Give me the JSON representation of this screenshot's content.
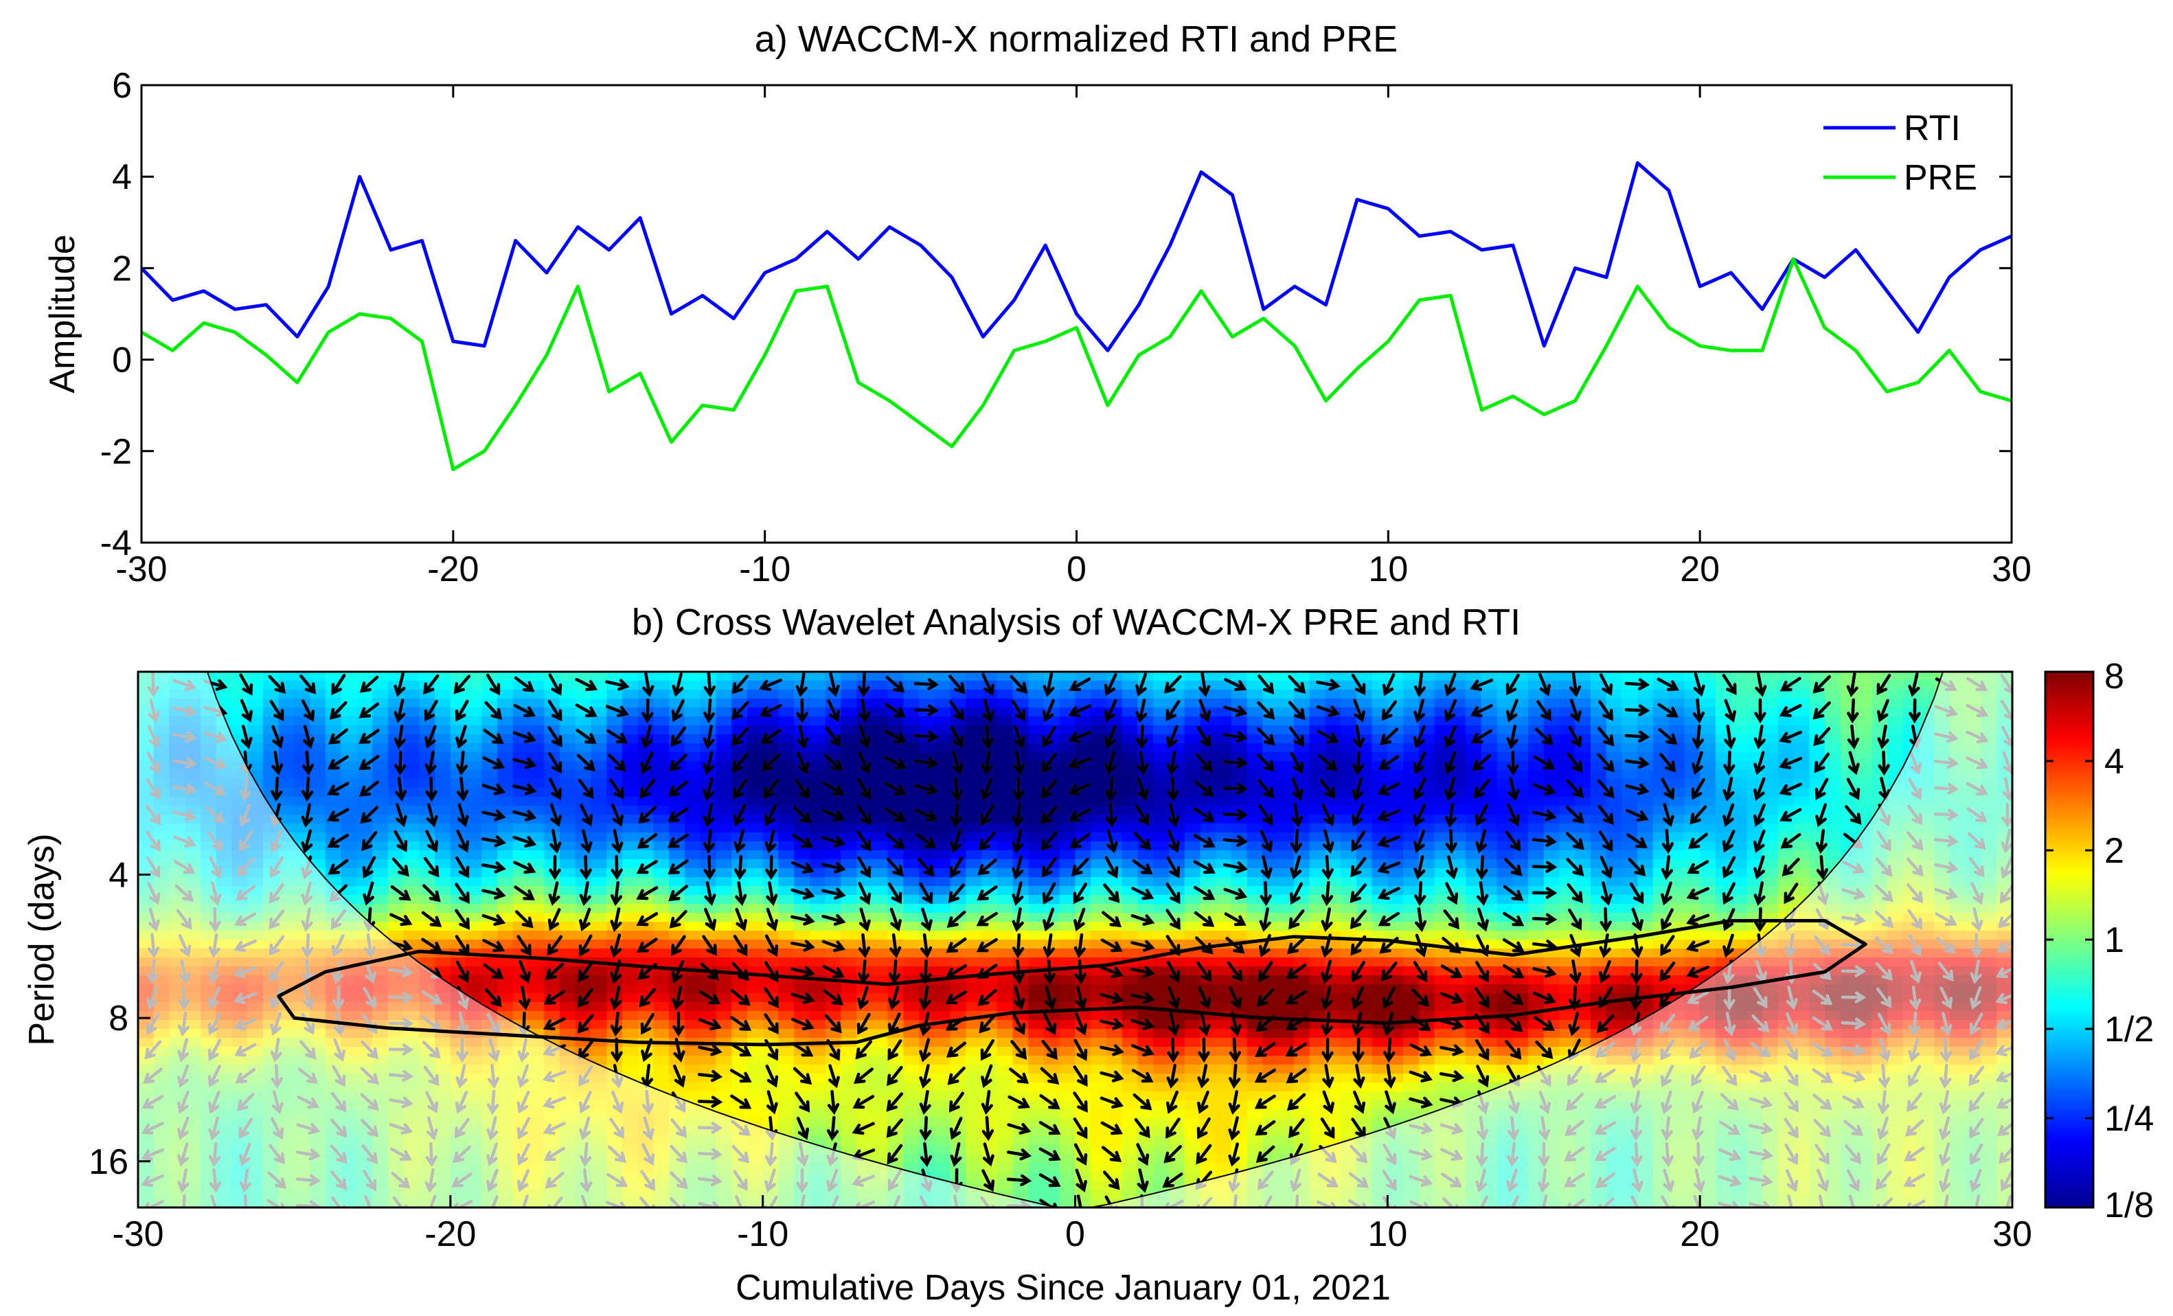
{
  "chart_data": [
    {
      "type": "line",
      "title": "a) WACCM-X normalized RTI and PRE",
      "xlabel": "",
      "ylabel": "Amplitude",
      "xlim": [
        -30,
        30
      ],
      "ylim": [
        -4,
        6
      ],
      "xticks": [
        -30,
        -20,
        -10,
        0,
        10,
        20,
        30
      ],
      "yticks": [
        -4,
        -2,
        0,
        2,
        4,
        6
      ],
      "legend_position": "top-right",
      "x": [
        -30,
        -29,
        -28,
        -27,
        -26,
        -25,
        -24,
        -23,
        -22,
        -21,
        -20,
        -19,
        -18,
        -17,
        -16,
        -15,
        -14,
        -13,
        -12,
        -11,
        -10,
        -9,
        -8,
        -7,
        -6,
        -5,
        -4,
        -3,
        -2,
        -1,
        0,
        1,
        2,
        3,
        4,
        5,
        6,
        7,
        8,
        9,
        10,
        11,
        12,
        13,
        14,
        15,
        16,
        17,
        18,
        19,
        20,
        21,
        22,
        23,
        24,
        25,
        26,
        27,
        28,
        29,
        30
      ],
      "series": [
        {
          "name": "RTI",
          "color": "#0000ff",
          "values": [
            2.0,
            1.3,
            1.5,
            1.1,
            1.2,
            0.5,
            1.6,
            4.0,
            2.4,
            2.6,
            0.4,
            0.3,
            2.6,
            1.9,
            2.9,
            2.4,
            3.1,
            1.0,
            1.4,
            0.9,
            1.9,
            2.2,
            2.8,
            2.2,
            2.9,
            2.5,
            1.8,
            0.5,
            1.3,
            2.5,
            1.0,
            0.2,
            1.2,
            2.5,
            4.1,
            3.6,
            1.1,
            1.6,
            1.2,
            3.5,
            3.3,
            2.7,
            2.8,
            2.4,
            2.5,
            0.3,
            2.0,
            1.8,
            4.3,
            3.7,
            1.6,
            1.9,
            1.1,
            2.2,
            1.8,
            2.4,
            1.5,
            0.6,
            1.8,
            2.4,
            2.7
          ]
        },
        {
          "name": "PRE",
          "color": "#00ee00",
          "values": [
            0.6,
            0.2,
            0.8,
            0.6,
            0.1,
            -0.5,
            0.6,
            1.0,
            0.9,
            0.4,
            -2.4,
            -2.0,
            -1.0,
            0.1,
            1.6,
            -0.7,
            -0.3,
            -1.8,
            -1.0,
            -1.1,
            0.1,
            1.5,
            1.6,
            -0.5,
            -0.9,
            -1.4,
            -1.9,
            -1.0,
            0.2,
            0.4,
            0.7,
            -1.0,
            0.1,
            0.5,
            1.5,
            0.5,
            0.9,
            0.3,
            -0.9,
            -0.2,
            0.4,
            1.3,
            1.4,
            -1.1,
            -0.8,
            -1.2,
            -0.9,
            0.3,
            1.6,
            0.7,
            0.3,
            0.2,
            0.2,
            2.2,
            0.7,
            0.2,
            -0.7,
            -0.5,
            0.2,
            -0.7,
            -0.9
          ]
        }
      ]
    },
    {
      "type": "heatmap",
      "title": "b) Cross Wavelet Analysis of WACCM-X PRE and RTI",
      "xlabel": "Cumulative Days Since January 01, 2021",
      "ylabel": "Period (days)",
      "xlim": [
        -30,
        30
      ],
      "xticks": [
        -30,
        -20,
        -10,
        0,
        10,
        20,
        30
      ],
      "y_scale": "log2",
      "ylim": [
        1.5,
        20
      ],
      "yticks": [
        4,
        8,
        16
      ],
      "colorbar": {
        "colormap": "jet",
        "scale": "log2",
        "range": [
          0.125,
          8
        ],
        "tick_labels": [
          "8",
          "4",
          "2",
          "1",
          "1/2",
          "1/4",
          "1/8"
        ],
        "tick_values": [
          8,
          4,
          2,
          1,
          0.5,
          0.25,
          0.125
        ]
      },
      "features": {
        "band_center_period": 7,
        "band_peak_power": 6,
        "background_power": 1,
        "short_period_low_power": 0.15,
        "cone_of_influence": "faded outside cone",
        "significance_contour": "black closed contour around 6-8 day band",
        "phase_arrows": "black inside cone, grey outside"
      }
    }
  ]
}
